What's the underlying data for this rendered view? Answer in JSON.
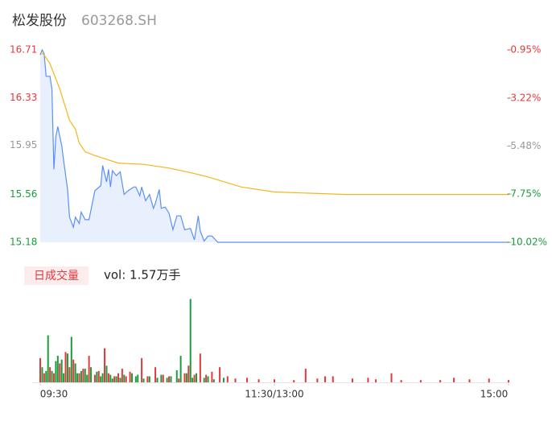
{
  "header": {
    "title": "松发股份",
    "code": "603268.SH"
  },
  "chart_data": [
    {
      "type": "line",
      "xlim": [
        0,
        240
      ],
      "ylim": [
        15.18,
        16.71
      ],
      "yticks": [
        16.71,
        16.33,
        15.95,
        15.56,
        15.18
      ],
      "ytick_colors": [
        "#e4393c",
        "#e4393c",
        "#999999",
        "#1a9c3c",
        "#1a9c3c"
      ],
      "y2lim": [
        -10.02,
        -0.95
      ],
      "y2ticks": [
        {
          "value": -0.95,
          "label": "-0.95%"
        },
        {
          "value": -3.22,
          "label": "-3.22%"
        },
        {
          "value": -5.48,
          "label": "-5.48%"
        },
        {
          "value": -7.75,
          "label": "-7.75%"
        },
        {
          "value": -10.02,
          "label": "-10.02%"
        }
      ],
      "area_color": "#e8f0fd",
      "series": [
        {
          "name": "price",
          "color": "#5b8ff9",
          "x": [
            0,
            1,
            2,
            3,
            5,
            6,
            7,
            8,
            9,
            11,
            12,
            14,
            15,
            17,
            18,
            20,
            21,
            23,
            25,
            28,
            31,
            32,
            34,
            35,
            36,
            37,
            39,
            41,
            43,
            45,
            48,
            49,
            51,
            52,
            54,
            56,
            58,
            59,
            61,
            62,
            64,
            66,
            68,
            70,
            72,
            74,
            77,
            79,
            81,
            82,
            84,
            86,
            88,
            91,
            240
          ],
          "values": [
            16.67,
            16.71,
            16.68,
            16.5,
            16.5,
            16.4,
            15.76,
            16.02,
            16.1,
            15.95,
            15.83,
            15.6,
            15.38,
            15.3,
            15.38,
            15.33,
            15.42,
            15.36,
            15.36,
            15.59,
            15.63,
            15.79,
            15.66,
            15.76,
            15.62,
            15.75,
            15.71,
            15.74,
            15.56,
            15.59,
            15.62,
            15.62,
            15.55,
            15.62,
            15.51,
            15.56,
            15.45,
            15.49,
            15.6,
            15.45,
            15.46,
            15.41,
            15.28,
            15.39,
            15.39,
            15.28,
            15.29,
            15.2,
            15.39,
            15.27,
            15.19,
            15.23,
            15.23,
            15.18,
            15.18
          ]
        },
        {
          "name": "average",
          "color": "#f5b41e",
          "x": [
            0,
            2,
            5,
            10,
            15,
            18,
            20,
            23,
            28,
            32,
            40,
            53,
            66,
            78,
            86,
            103,
            120,
            157,
            240
          ],
          "values": [
            16.69,
            16.67,
            16.6,
            16.4,
            16.15,
            16.08,
            15.97,
            15.9,
            15.87,
            15.85,
            15.81,
            15.8,
            15.77,
            15.73,
            15.7,
            15.62,
            15.58,
            15.56,
            15.56
          ]
        }
      ]
    },
    {
      "type": "bar",
      "legend_label": "日成交量",
      "annotation": "vol: 1.57万手",
      "xlim": [
        0,
        240
      ],
      "xticks": [
        {
          "value": 0,
          "label": "09:30"
        },
        {
          "value": 120,
          "label": "11:30/13:00"
        },
        {
          "value": 240,
          "label": "15:00"
        }
      ],
      "ylim": [
        0,
        1200
      ],
      "series": [
        {
          "name": "up",
          "color": "#e4393c",
          "x": [
            0,
            2,
            5,
            7,
            10,
            13,
            15,
            17,
            20,
            22,
            25,
            28,
            30,
            33,
            35,
            38,
            40,
            42,
            44,
            46,
            52,
            55,
            59,
            63,
            66,
            71,
            74,
            76,
            79,
            82,
            85,
            88,
            92,
            96,
            100,
            106,
            112,
            120,
            130,
            136,
            142,
            146,
            150,
            160,
            168,
            172,
            180,
            185,
            195,
            205,
            212,
            220,
            230,
            240
          ],
          "values": [
            320,
            120,
            200,
            120,
            250,
            400,
            200,
            300,
            120,
            180,
            350,
            100,
            150,
            450,
            120,
            80,
            120,
            180,
            80,
            140,
            320,
            80,
            200,
            100,
            80,
            50,
            120,
            220,
            100,
            380,
            100,
            140,
            200,
            80,
            50,
            60,
            40,
            40,
            30,
            180,
            50,
            80,
            80,
            50,
            60,
            40,
            120,
            30,
            30,
            30,
            60,
            40,
            50,
            30
          ]
        },
        {
          "name": "down",
          "color": "#1a9c3c",
          "x": [
            1,
            3,
            4,
            6,
            8,
            9,
            11,
            12,
            14,
            16,
            18,
            19,
            21,
            23,
            24,
            26,
            29,
            31,
            32,
            34,
            36,
            37,
            39,
            41,
            43,
            47,
            49,
            50,
            53,
            56,
            60,
            62,
            65,
            67,
            70,
            72,
            75,
            77,
            78,
            80,
            84,
            86,
            89,
            94
          ],
          "values": [
            200,
            150,
            620,
            150,
            280,
            350,
            300,
            120,
            380,
            600,
            250,
            120,
            150,
            180,
            100,
            200,
            140,
            80,
            120,
            220,
            100,
            50,
            80,
            60,
            100,
            120,
            80,
            100,
            50,
            80,
            60,
            100,
            60,
            80,
            160,
            350,
            120,
            1100,
            60,
            120,
            60,
            80,
            40,
            60
          ]
        }
      ]
    }
  ]
}
